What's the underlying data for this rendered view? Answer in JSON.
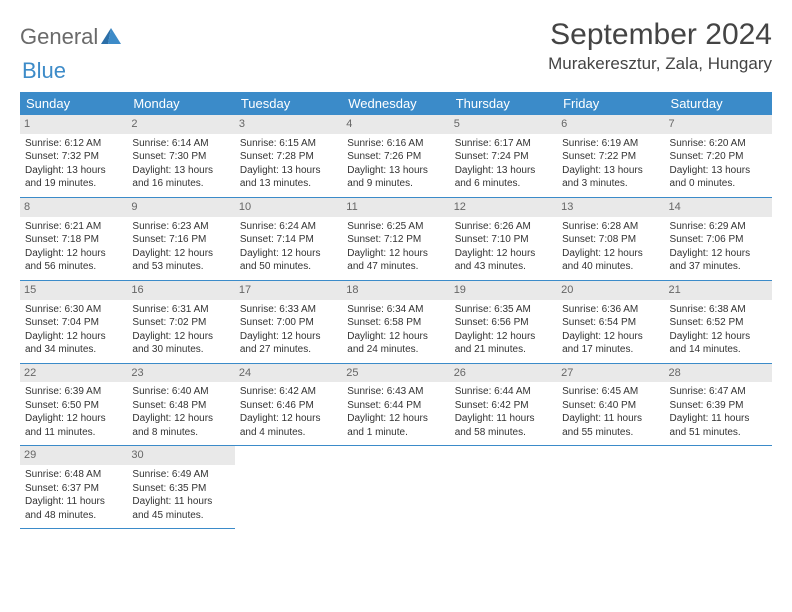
{
  "logo": {
    "text1": "General",
    "text2": "Blue"
  },
  "title": "September 2024",
  "location": "Murakeresztur, Zala, Hungary",
  "header_bg": "#3b8bc9",
  "days_of_week": [
    "Sunday",
    "Monday",
    "Tuesday",
    "Wednesday",
    "Thursday",
    "Friday",
    "Saturday"
  ],
  "cell_font_size": 10,
  "weeks": [
    [
      {
        "n": "1",
        "sr": "Sunrise: 6:12 AM",
        "ss": "Sunset: 7:32 PM",
        "dl": "Daylight: 13 hours and 19 minutes."
      },
      {
        "n": "2",
        "sr": "Sunrise: 6:14 AM",
        "ss": "Sunset: 7:30 PM",
        "dl": "Daylight: 13 hours and 16 minutes."
      },
      {
        "n": "3",
        "sr": "Sunrise: 6:15 AM",
        "ss": "Sunset: 7:28 PM",
        "dl": "Daylight: 13 hours and 13 minutes."
      },
      {
        "n": "4",
        "sr": "Sunrise: 6:16 AM",
        "ss": "Sunset: 7:26 PM",
        "dl": "Daylight: 13 hours and 9 minutes."
      },
      {
        "n": "5",
        "sr": "Sunrise: 6:17 AM",
        "ss": "Sunset: 7:24 PM",
        "dl": "Daylight: 13 hours and 6 minutes."
      },
      {
        "n": "6",
        "sr": "Sunrise: 6:19 AM",
        "ss": "Sunset: 7:22 PM",
        "dl": "Daylight: 13 hours and 3 minutes."
      },
      {
        "n": "7",
        "sr": "Sunrise: 6:20 AM",
        "ss": "Sunset: 7:20 PM",
        "dl": "Daylight: 13 hours and 0 minutes."
      }
    ],
    [
      {
        "n": "8",
        "sr": "Sunrise: 6:21 AM",
        "ss": "Sunset: 7:18 PM",
        "dl": "Daylight: 12 hours and 56 minutes."
      },
      {
        "n": "9",
        "sr": "Sunrise: 6:23 AM",
        "ss": "Sunset: 7:16 PM",
        "dl": "Daylight: 12 hours and 53 minutes."
      },
      {
        "n": "10",
        "sr": "Sunrise: 6:24 AM",
        "ss": "Sunset: 7:14 PM",
        "dl": "Daylight: 12 hours and 50 minutes."
      },
      {
        "n": "11",
        "sr": "Sunrise: 6:25 AM",
        "ss": "Sunset: 7:12 PM",
        "dl": "Daylight: 12 hours and 47 minutes."
      },
      {
        "n": "12",
        "sr": "Sunrise: 6:26 AM",
        "ss": "Sunset: 7:10 PM",
        "dl": "Daylight: 12 hours and 43 minutes."
      },
      {
        "n": "13",
        "sr": "Sunrise: 6:28 AM",
        "ss": "Sunset: 7:08 PM",
        "dl": "Daylight: 12 hours and 40 minutes."
      },
      {
        "n": "14",
        "sr": "Sunrise: 6:29 AM",
        "ss": "Sunset: 7:06 PM",
        "dl": "Daylight: 12 hours and 37 minutes."
      }
    ],
    [
      {
        "n": "15",
        "sr": "Sunrise: 6:30 AM",
        "ss": "Sunset: 7:04 PM",
        "dl": "Daylight: 12 hours and 34 minutes."
      },
      {
        "n": "16",
        "sr": "Sunrise: 6:31 AM",
        "ss": "Sunset: 7:02 PM",
        "dl": "Daylight: 12 hours and 30 minutes."
      },
      {
        "n": "17",
        "sr": "Sunrise: 6:33 AM",
        "ss": "Sunset: 7:00 PM",
        "dl": "Daylight: 12 hours and 27 minutes."
      },
      {
        "n": "18",
        "sr": "Sunrise: 6:34 AM",
        "ss": "Sunset: 6:58 PM",
        "dl": "Daylight: 12 hours and 24 minutes."
      },
      {
        "n": "19",
        "sr": "Sunrise: 6:35 AM",
        "ss": "Sunset: 6:56 PM",
        "dl": "Daylight: 12 hours and 21 minutes."
      },
      {
        "n": "20",
        "sr": "Sunrise: 6:36 AM",
        "ss": "Sunset: 6:54 PM",
        "dl": "Daylight: 12 hours and 17 minutes."
      },
      {
        "n": "21",
        "sr": "Sunrise: 6:38 AM",
        "ss": "Sunset: 6:52 PM",
        "dl": "Daylight: 12 hours and 14 minutes."
      }
    ],
    [
      {
        "n": "22",
        "sr": "Sunrise: 6:39 AM",
        "ss": "Sunset: 6:50 PM",
        "dl": "Daylight: 12 hours and 11 minutes."
      },
      {
        "n": "23",
        "sr": "Sunrise: 6:40 AM",
        "ss": "Sunset: 6:48 PM",
        "dl": "Daylight: 12 hours and 8 minutes."
      },
      {
        "n": "24",
        "sr": "Sunrise: 6:42 AM",
        "ss": "Sunset: 6:46 PM",
        "dl": "Daylight: 12 hours and 4 minutes."
      },
      {
        "n": "25",
        "sr": "Sunrise: 6:43 AM",
        "ss": "Sunset: 6:44 PM",
        "dl": "Daylight: 12 hours and 1 minute."
      },
      {
        "n": "26",
        "sr": "Sunrise: 6:44 AM",
        "ss": "Sunset: 6:42 PM",
        "dl": "Daylight: 11 hours and 58 minutes."
      },
      {
        "n": "27",
        "sr": "Sunrise: 6:45 AM",
        "ss": "Sunset: 6:40 PM",
        "dl": "Daylight: 11 hours and 55 minutes."
      },
      {
        "n": "28",
        "sr": "Sunrise: 6:47 AM",
        "ss": "Sunset: 6:39 PM",
        "dl": "Daylight: 11 hours and 51 minutes."
      }
    ],
    [
      {
        "n": "29",
        "sr": "Sunrise: 6:48 AM",
        "ss": "Sunset: 6:37 PM",
        "dl": "Daylight: 11 hours and 48 minutes."
      },
      {
        "n": "30",
        "sr": "Sunrise: 6:49 AM",
        "ss": "Sunset: 6:35 PM",
        "dl": "Daylight: 11 hours and 45 minutes."
      },
      {
        "empty": true
      },
      {
        "empty": true
      },
      {
        "empty": true
      },
      {
        "empty": true
      },
      {
        "empty": true
      }
    ]
  ]
}
